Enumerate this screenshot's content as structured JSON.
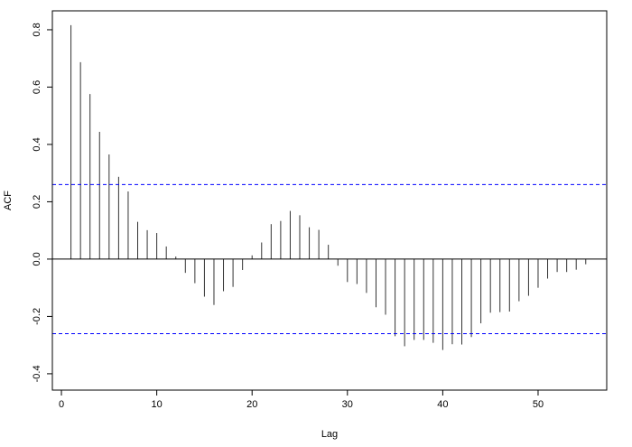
{
  "chart_data": {
    "type": "bar",
    "subtype": "acf",
    "title": "",
    "xlabel": "Lag",
    "ylabel": "ACF",
    "xlim": [
      -0.95,
      57.2
    ],
    "ylim": [
      -0.457,
      0.866
    ],
    "xticks": [
      0,
      10,
      20,
      30,
      40,
      50
    ],
    "yticks": [
      -0.4,
      -0.2,
      0.0,
      0.2,
      0.4,
      0.6,
      0.8
    ],
    "ytick_labels": [
      "-0.4",
      "-0.2",
      "0.0",
      "0.2",
      "0.4",
      "0.6",
      "0.8"
    ],
    "grid": false,
    "confidence_bound": 0.26,
    "confidence_color": "#0000ff",
    "bar_color": "#333333",
    "lags": [
      1,
      2,
      3,
      4,
      5,
      6,
      7,
      8,
      9,
      10,
      11,
      12,
      13,
      14,
      15,
      16,
      17,
      18,
      19,
      20,
      21,
      22,
      23,
      24,
      25,
      26,
      27,
      28,
      29,
      30,
      31,
      32,
      33,
      34,
      35,
      36,
      37,
      38,
      39,
      40,
      41,
      42,
      43,
      44,
      45,
      46,
      47,
      48,
      49,
      50,
      51,
      52,
      53,
      54,
      55
    ],
    "values": [
      0.816,
      0.687,
      0.576,
      0.444,
      0.365,
      0.287,
      0.236,
      0.13,
      0.101,
      0.091,
      0.044,
      0.009,
      -0.048,
      -0.084,
      -0.131,
      -0.16,
      -0.112,
      -0.097,
      -0.038,
      0.013,
      0.058,
      0.122,
      0.133,
      0.168,
      0.153,
      0.111,
      0.102,
      0.05,
      -0.023,
      -0.08,
      -0.087,
      -0.118,
      -0.168,
      -0.194,
      -0.269,
      -0.304,
      -0.282,
      -0.282,
      -0.292,
      -0.317,
      -0.297,
      -0.298,
      -0.272,
      -0.224,
      -0.187,
      -0.185,
      -0.183,
      -0.147,
      -0.128,
      -0.1,
      -0.068,
      -0.045,
      -0.045,
      -0.037,
      -0.018
    ]
  }
}
